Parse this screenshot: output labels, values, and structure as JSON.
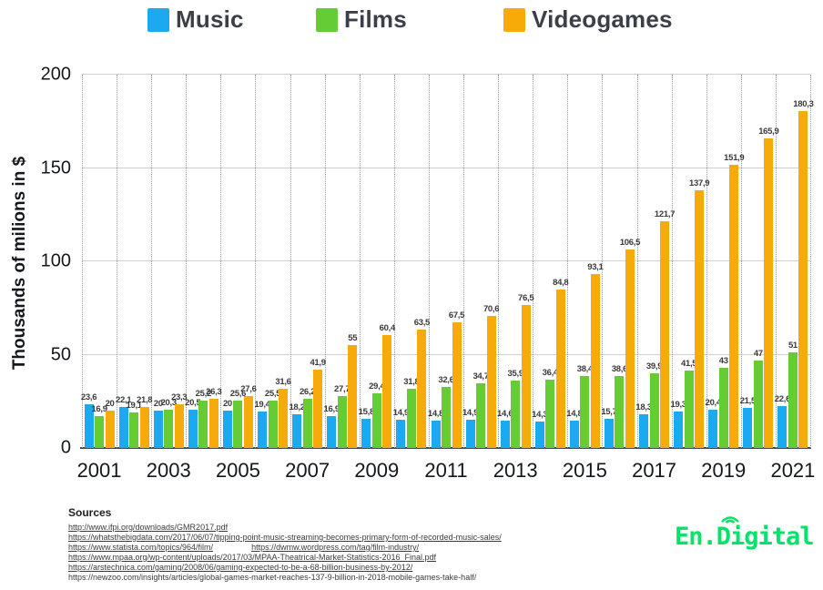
{
  "legend": [
    {
      "label": "Music",
      "color": "#1ba9f0"
    },
    {
      "label": "Films",
      "color": "#66cc33"
    },
    {
      "label": "Videogames",
      "color": "#f7ab0b"
    }
  ],
  "chart_data": {
    "type": "bar",
    "title": "",
    "xlabel": "",
    "ylabel": "Thousands of milions in $",
    "ylim": [
      0,
      200
    ],
    "yticks": [
      0,
      50,
      100,
      150,
      200
    ],
    "grid": "horizontal",
    "legend_position": "top",
    "decimal_separator": ",",
    "categories": [
      "2001",
      "2002",
      "2003",
      "2004",
      "2005",
      "2006",
      "2007",
      "2008",
      "2009",
      "2010",
      "2011",
      "2012",
      "2013",
      "2014",
      "2015",
      "2016",
      "2017",
      "2018",
      "2019",
      "2020",
      "2021"
    ],
    "x_tick_labels_shown": [
      "2001",
      "2003",
      "2005",
      "2007",
      "2009",
      "2011",
      "2013",
      "2015",
      "2017",
      "2019",
      "2021"
    ],
    "series": [
      {
        "name": "Music",
        "color": "#1ba9f0",
        "values": [
          23.6,
          22.1,
          20,
          20.5,
          20,
          19.4,
          18.2,
          16.9,
          15.8,
          14.9,
          14.8,
          14.9,
          14.6,
          14.3,
          14.8,
          15.7,
          18.3,
          19.3,
          20.4,
          21.5,
          22.6
        ]
      },
      {
        "name": "Films",
        "color": "#66cc33",
        "values": [
          16.9,
          19.1,
          20.3,
          25.2,
          25.6,
          25.5,
          26.2,
          27.7,
          29.4,
          31.8,
          32.6,
          34.7,
          35.9,
          36.4,
          38.4,
          38.6,
          39.9,
          41.5,
          43,
          47,
          51
        ]
      },
      {
        "name": "Videogames",
        "color": "#f7ab0b",
        "values": [
          20,
          21.8,
          23.3,
          26.3,
          27.6,
          31.6,
          41.9,
          55,
          60.4,
          63.5,
          67.5,
          70.6,
          76.5,
          84.8,
          93.1,
          106.5,
          121.7,
          137.9,
          151.9,
          165.9,
          180.3
        ]
      }
    ]
  },
  "footer": {
    "sources_title": "Sources",
    "source_lines": [
      [
        {
          "text": "http://www.ifpi.org/downloads/GMR2017.pdf",
          "underline": true
        }
      ],
      [
        {
          "text": "https://whatsthebigdata.com/2017/06/07/tipping-point-music-streaming-becomes-primary-form-of-recorded-music-sales/",
          "underline": true
        }
      ],
      [
        {
          "text": "https://www.statista.com/topics/964/film/",
          "underline": true
        },
        {
          "text": "https://dwmw.wordpress.com/tag/film-industry/",
          "underline": true
        }
      ],
      [
        {
          "text": "https://www.mpaa.org/wp-content/uploads/2017/03/MPAA-Theatrical-Market-Statistics-2016_Final.pdf",
          "underline": true
        }
      ],
      [
        {
          "text": "https://arstechnica.com/gaming/2008/06/gaming-expected-to-be-a-68-billion-business-by-2012/",
          "underline": true
        }
      ],
      [
        {
          "text": "https://newzoo.com/insights/articles/global-games-market-reaches-137-9-billion-in-2018-mobile-games-take-half/",
          "underline": false
        }
      ]
    ],
    "logo_text": "En.Digital",
    "logo_color": "#00e468"
  }
}
